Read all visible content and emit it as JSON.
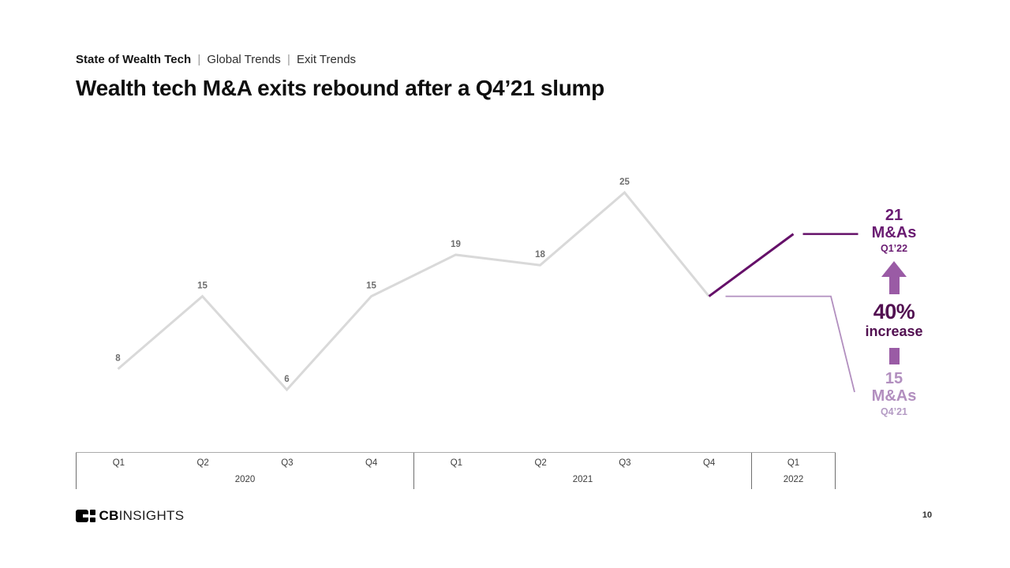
{
  "header": {
    "breadcrumb": {
      "primary": "State of Wealth Tech",
      "separator": "|",
      "items": [
        "Global Trends",
        "Exit Trends"
      ]
    },
    "title": "Wealth tech M&A exits rebound after a Q4’21 slump"
  },
  "chart_data": {
    "type": "line",
    "title": "",
    "categories": [
      "Q1 2020",
      "Q2 2020",
      "Q3 2020",
      "Q4 2020",
      "Q1 2021",
      "Q2 2021",
      "Q3 2021",
      "Q4 2021",
      "Q1 2022"
    ],
    "values": [
      8,
      15,
      6,
      15,
      19,
      18,
      25,
      15,
      21
    ],
    "point_labels": [
      8,
      15,
      6,
      15,
      19,
      18,
      25,
      null,
      null
    ],
    "ylim": [
      0,
      30
    ],
    "grid": false,
    "legend": "none",
    "line_color": "#d9d9d9",
    "highlight_color": "#651069",
    "label_color": "#6e6e6e",
    "x_axis": {
      "quarters": [
        "Q1",
        "Q2",
        "Q3",
        "Q4",
        "Q1",
        "Q2",
        "Q3",
        "Q4",
        "Q1"
      ],
      "year_groups": [
        {
          "label": "2020",
          "span": 4
        },
        {
          "label": "2021",
          "span": 4
        },
        {
          "label": "2022",
          "span": 1
        }
      ]
    }
  },
  "annotation": {
    "top_value": "21",
    "top_unit": "M&As",
    "top_period": "Q1’22",
    "pct": "40%",
    "pct_label": "increase",
    "bottom_value": "15",
    "bottom_unit": "M&As",
    "bottom_period": "Q4’21",
    "dark_text_color": "#6a1b72",
    "emphasis_color": "#521051",
    "arrow_color": "#9a5ba5",
    "light_text_color": "#b28fbf",
    "light_small_color": "#b49bc4",
    "dark_line_color": "#651069",
    "light_line_color": "#b28fbf"
  },
  "footer": {
    "logo_bold": "CB",
    "logo_light": "INSIGHTS",
    "page_number": "10"
  }
}
